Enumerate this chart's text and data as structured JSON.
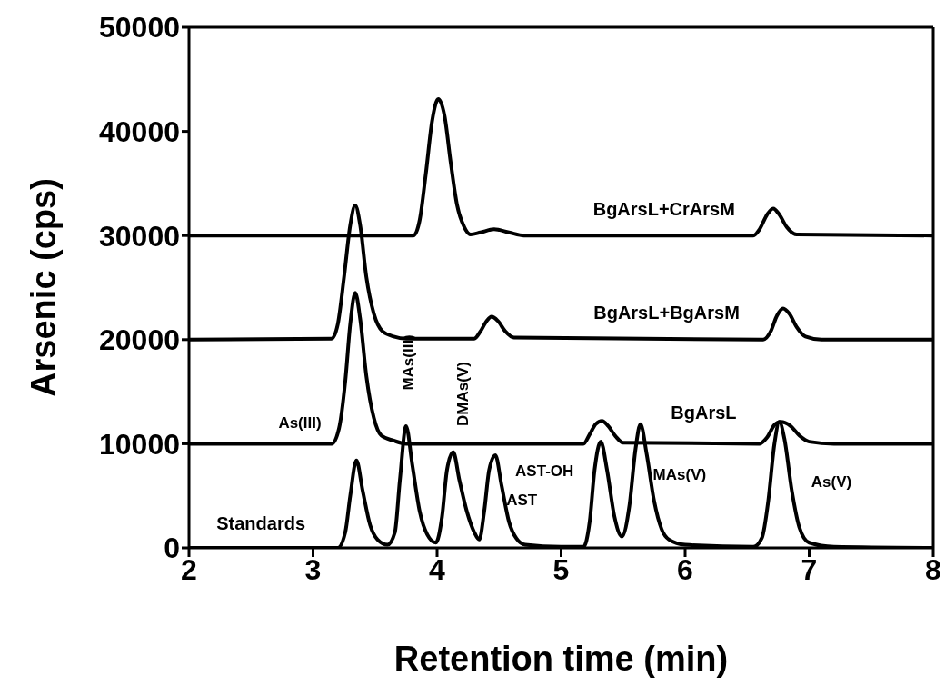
{
  "chart_data": {
    "type": "line",
    "xlabel": "Retention time (min)",
    "ylabel": "Arsenic (cps)",
    "xlim": [
      2,
      8
    ],
    "ylim": [
      0,
      50000
    ],
    "xticks": [
      2,
      3,
      4,
      5,
      6,
      7,
      8
    ],
    "yticks": [
      0,
      10000,
      20000,
      30000,
      40000,
      50000
    ],
    "marker": "none",
    "line_style": "solid",
    "series": [
      {
        "name": "Standards",
        "color": "#000000",
        "x": [
          2,
          3.2,
          3.26,
          3.3,
          3.35,
          3.4,
          3.46,
          3.52,
          3.6,
          3.66,
          3.7,
          3.75,
          3.8,
          3.86,
          3.92,
          3.99,
          4.04,
          4.08,
          4.13,
          4.18,
          4.24,
          4.3,
          4.34,
          4.38,
          4.42,
          4.47,
          4.52,
          4.58,
          4.64,
          4.71,
          5.0,
          5.18,
          5.23,
          5.27,
          5.32,
          5.37,
          5.43,
          5.49,
          5.55,
          5.6,
          5.64,
          5.69,
          5.75,
          5.81,
          5.87,
          6.0,
          6.55,
          6.62,
          6.67,
          6.72,
          6.76,
          6.8,
          6.86,
          6.92,
          7.0,
          7.2,
          8
        ],
        "values": [
          0,
          0,
          1500,
          5000,
          8400,
          5500,
          2200,
          800,
          300,
          1500,
          6500,
          11700,
          8000,
          3500,
          1300,
          500,
          3000,
          7500,
          9200,
          6500,
          3500,
          1500,
          800,
          3500,
          7500,
          8900,
          6000,
          2500,
          900,
          300,
          100,
          100,
          2500,
          7500,
          10200,
          7500,
          3000,
          1100,
          4000,
          9500,
          11900,
          9000,
          4500,
          1800,
          800,
          300,
          100,
          1000,
          4500,
          10000,
          12100,
          10500,
          5500,
          2000,
          500,
          100,
          0
        ]
      },
      {
        "name": "BgArsL",
        "color": "#000000",
        "x": [
          2,
          3.15,
          3.21,
          3.26,
          3.3,
          3.34,
          3.38,
          3.43,
          3.49,
          3.55,
          3.65,
          3.75,
          5.18,
          5.23,
          5.28,
          5.33,
          5.38,
          5.44,
          5.5,
          6.6,
          6.66,
          6.72,
          6.77,
          6.85,
          6.92,
          7.0,
          7.2,
          8
        ],
        "values": [
          10000,
          10000,
          11500,
          16000,
          21500,
          24500,
          22000,
          16500,
          12500,
          10800,
          10300,
          10000,
          10000,
          10900,
          11900,
          12200,
          11700,
          10700,
          10100,
          10000,
          10600,
          11800,
          12100,
          11700,
          10800,
          10200,
          10000,
          10000
        ]
      },
      {
        "name": "BgArsL+BgArsM",
        "color": "#000000",
        "x": [
          2,
          3.15,
          3.2,
          3.25,
          3.3,
          3.34,
          3.38,
          3.43,
          3.49,
          3.56,
          3.65,
          3.75,
          4.3,
          4.35,
          4.4,
          4.44,
          4.49,
          4.55,
          4.62,
          6.63,
          6.69,
          6.74,
          6.79,
          6.84,
          6.9,
          6.97,
          7.1,
          8
        ],
        "values": [
          20000,
          20100,
          21500,
          26000,
          31000,
          32900,
          31000,
          26000,
          22500,
          20800,
          20300,
          20100,
          20100,
          20800,
          21800,
          22200,
          21800,
          20800,
          20200,
          20000,
          20800,
          22300,
          23000,
          22500,
          21200,
          20300,
          20000,
          20000
        ]
      },
      {
        "name": "BgArsL+CrArsM",
        "color": "#000000",
        "x": [
          2,
          3.81,
          3.86,
          3.91,
          3.96,
          4.01,
          4.06,
          4.11,
          4.16,
          4.22,
          4.27,
          4.35,
          4.46,
          4.58,
          4.7,
          6.55,
          6.6,
          6.66,
          6.71,
          6.76,
          6.82,
          6.9,
          8
        ],
        "values": [
          30000,
          30000,
          31500,
          36000,
          41000,
          43100,
          41500,
          37000,
          33000,
          30800,
          30100,
          30300,
          30600,
          30300,
          30000,
          30000,
          30600,
          32000,
          32600,
          32000,
          30800,
          30100,
          30000
        ]
      }
    ],
    "annotations": [
      "As(III)",
      {
        "text": "MAs(III)",
        "x": 3.75,
        "y": 11700
      },
      {
        "text": "DMAs(V)",
        "x": 4.13,
        "y": 9200
      },
      {
        "text": "AST",
        "x": 4.47,
        "y": 8900
      },
      {
        "text": "AST-OH",
        "x": 5.32,
        "y": 10200
      },
      {
        "text": "MAs(V)",
        "x": 5.64,
        "y": 11900
      },
      "As(V)"
    ]
  }
}
